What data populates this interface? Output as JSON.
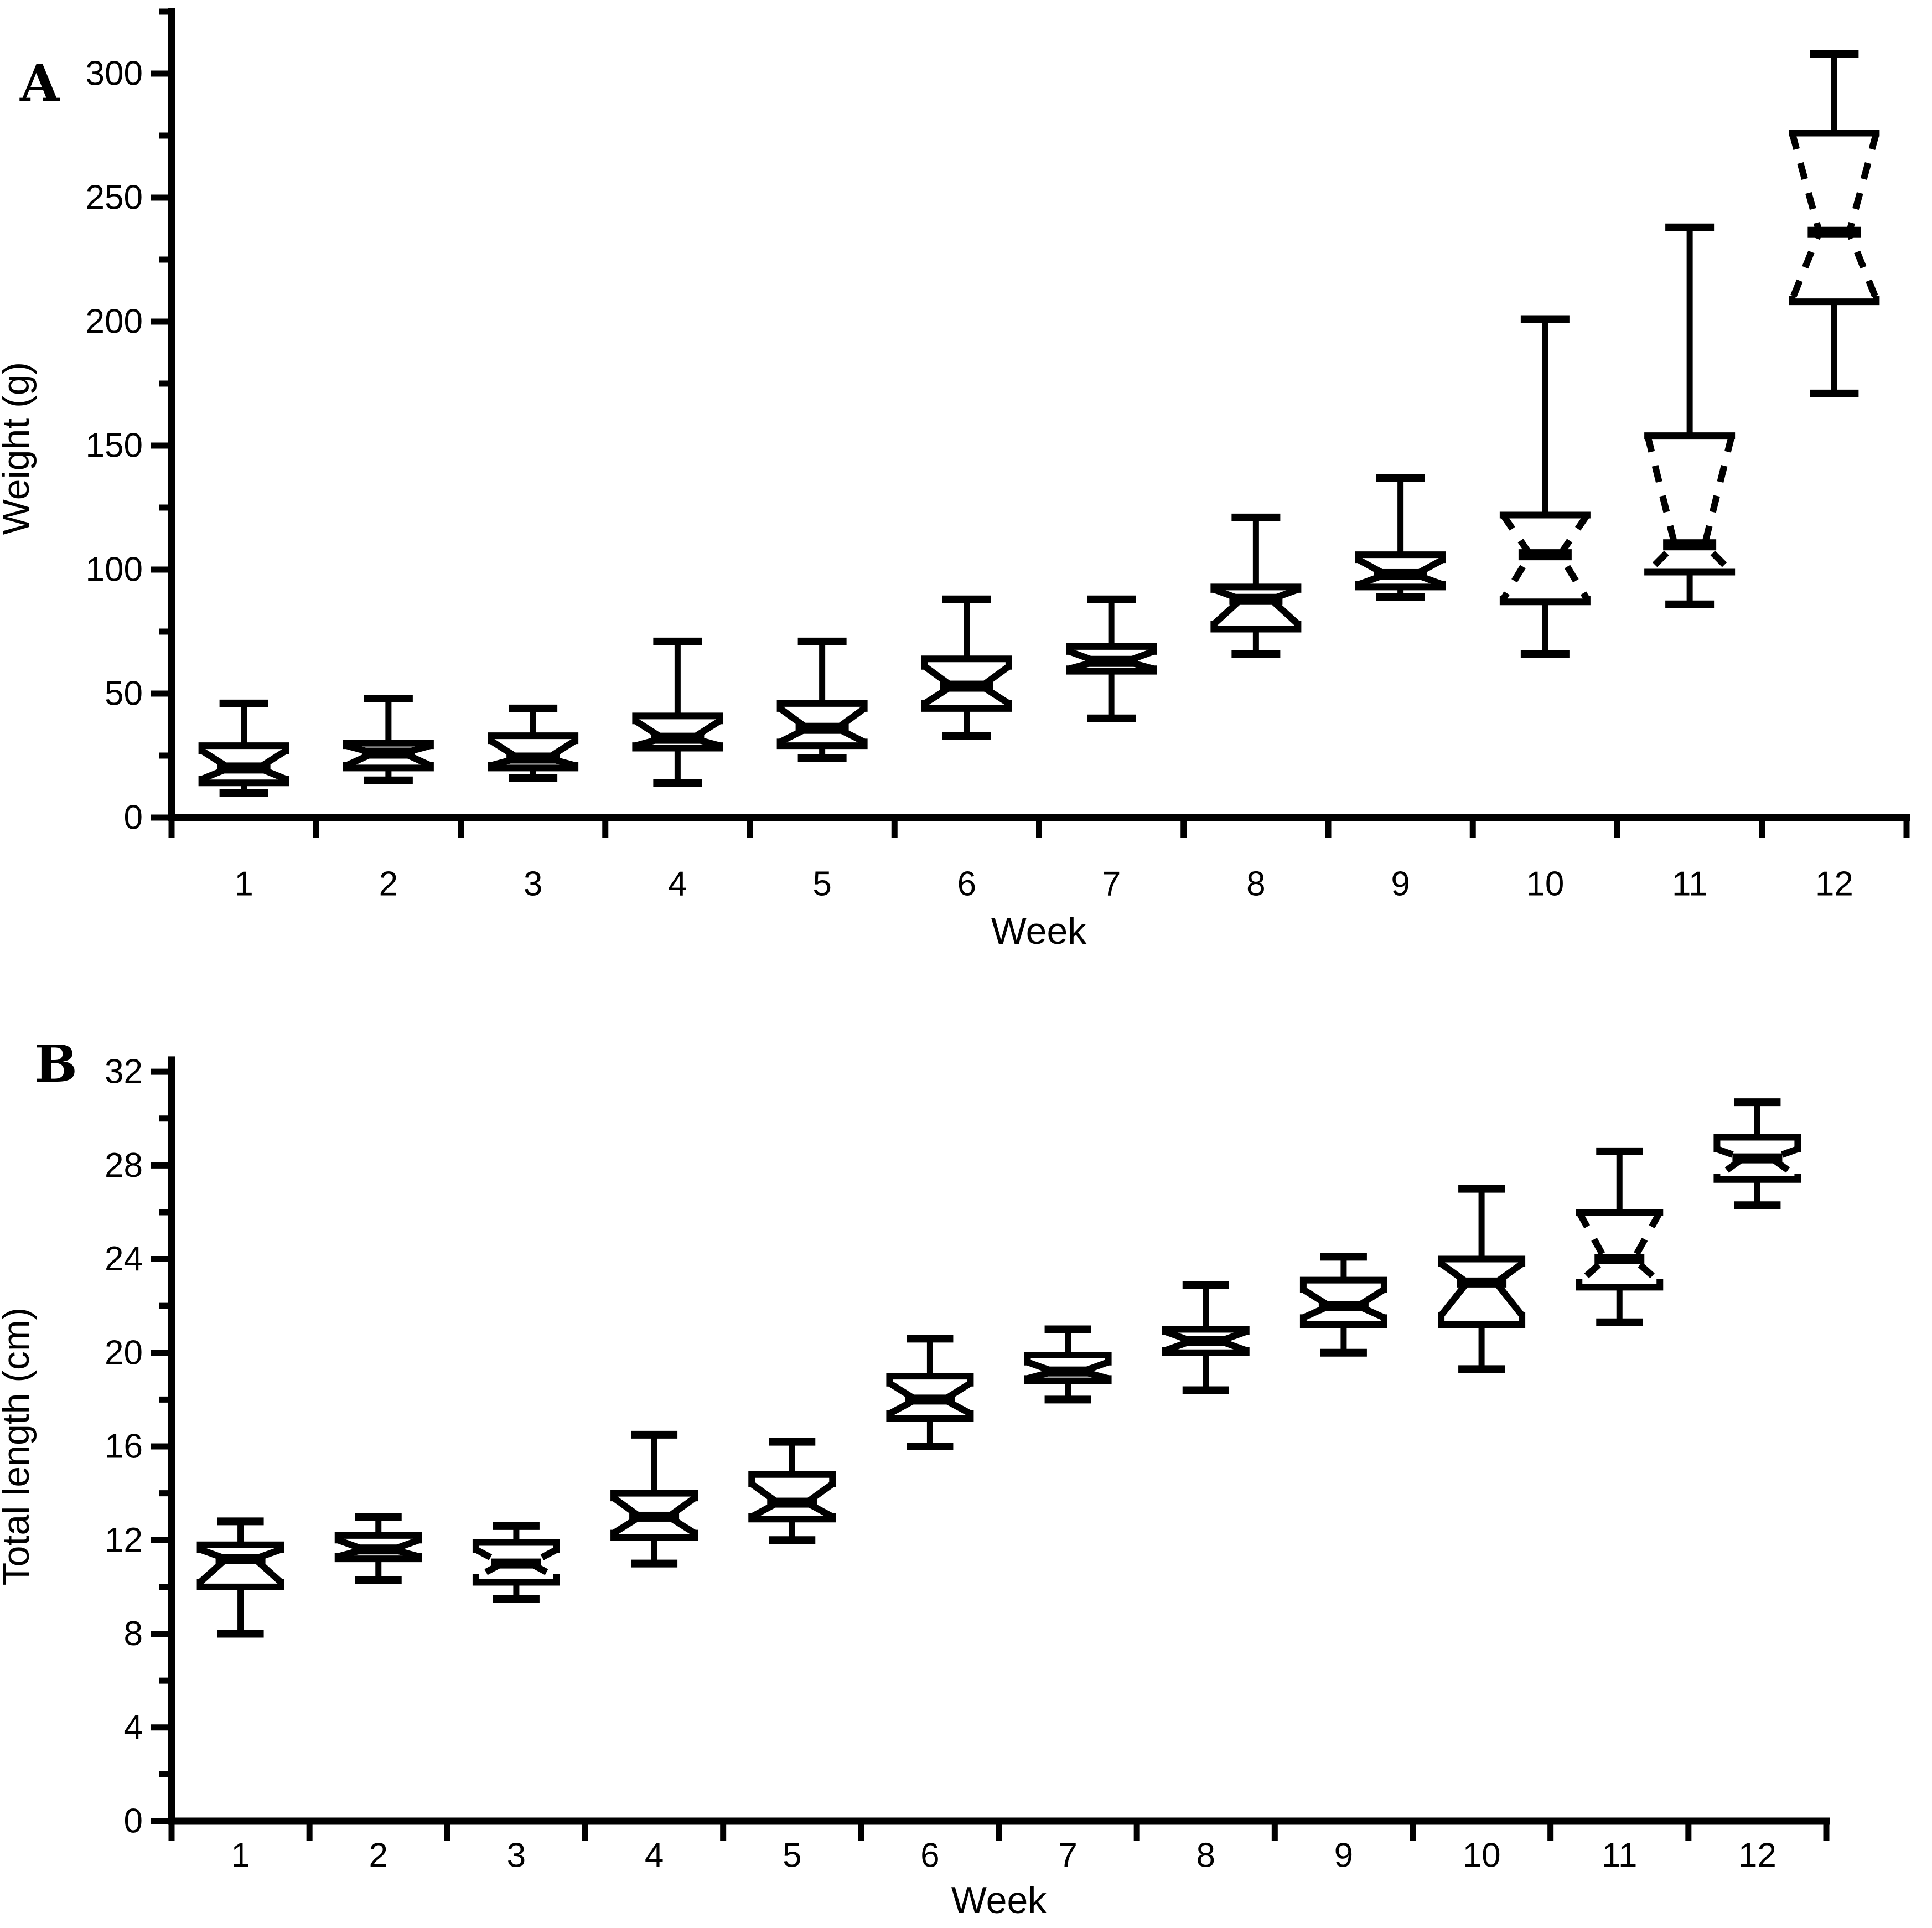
{
  "figure": {
    "background": "#ffffff",
    "ink_color": "#000000",
    "description": "Two-panel notched box plot figure"
  },
  "chart_data": [
    {
      "type": "boxplot",
      "panel_label": "A",
      "ylabel": "Weight (g)",
      "xlabel": "Week",
      "ylim": [
        0,
        300
      ],
      "ytick_step": 50,
      "yminor_step": 25,
      "ytick_labels": [
        "0",
        "50",
        "100",
        "150",
        "200",
        "250",
        "300"
      ],
      "categories": [
        "1",
        "2",
        "3",
        "4",
        "5",
        "6",
        "7",
        "8",
        "9",
        "10",
        "11",
        "12"
      ],
      "grid": false,
      "notched": true,
      "legend": null,
      "boxes": [
        {
          "week": "1",
          "min": 10,
          "q1": 14,
          "median": 20,
          "q3": 29,
          "max": 46,
          "notch_low": 15.5,
          "notch_high": 27,
          "notch_dashed": false
        },
        {
          "week": "2",
          "min": 15,
          "q1": 20,
          "median": 26,
          "q3": 30,
          "max": 48,
          "notch_low": 21,
          "notch_high": 29,
          "notch_dashed": false
        },
        {
          "week": "3",
          "min": 16,
          "q1": 20,
          "median": 24,
          "q3": 33,
          "max": 44,
          "notch_low": 21,
          "notch_high": 31,
          "notch_dashed": false
        },
        {
          "week": "4",
          "min": 14,
          "q1": 28,
          "median": 32,
          "q3": 41,
          "max": 71,
          "notch_low": 29,
          "notch_high": 39,
          "notch_dashed": false
        },
        {
          "week": "5",
          "min": 24,
          "q1": 29,
          "median": 36,
          "q3": 46,
          "max": 71,
          "notch_low": 30.5,
          "notch_high": 44,
          "notch_dashed": false
        },
        {
          "week": "6",
          "min": 33,
          "q1": 44,
          "median": 53,
          "q3": 64,
          "max": 88,
          "notch_low": 46,
          "notch_high": 61,
          "notch_dashed": false
        },
        {
          "week": "7",
          "min": 40,
          "q1": 59,
          "median": 63,
          "q3": 69,
          "max": 88,
          "notch_low": 60,
          "notch_high": 67,
          "notch_dashed": false
        },
        {
          "week": "8",
          "min": 66,
          "q1": 76,
          "median": 88,
          "q3": 93,
          "max": 121,
          "notch_low": 78,
          "notch_high": 92,
          "notch_dashed": false
        },
        {
          "week": "9",
          "min": 89,
          "q1": 93,
          "median": 98,
          "q3": 106,
          "max": 137,
          "notch_low": 94,
          "notch_high": 104,
          "notch_dashed": false
        },
        {
          "week": "10",
          "min": 66,
          "q1": 87,
          "median": 106,
          "q3": 122,
          "max": 201,
          "notch_low": 88,
          "notch_high": 122,
          "notch_dashed": true
        },
        {
          "week": "11",
          "min": 86,
          "q1": 99,
          "median": 110,
          "q3": 154,
          "max": 238,
          "notch_low": 99,
          "notch_high": 154,
          "notch_dashed": true
        },
        {
          "week": "12",
          "min": 171,
          "q1": 208,
          "median": 236,
          "q3": 276,
          "max": 308,
          "notch_low": 209,
          "notch_high": 276,
          "notch_dashed": true
        }
      ]
    },
    {
      "type": "boxplot",
      "panel_label": "B",
      "ylabel": "Total length (cm)",
      "xlabel": "Week",
      "ylim": [
        0,
        32
      ],
      "ytick_step": 4,
      "yminor_step": 2,
      "ytick_labels": [
        "0",
        "4",
        "8",
        "12",
        "16",
        "20",
        "24",
        "28",
        "32"
      ],
      "categories": [
        "1",
        "2",
        "3",
        "4",
        "5",
        "6",
        "7",
        "8",
        "9",
        "10",
        "11",
        "12"
      ],
      "grid": false,
      "notched": true,
      "legend": null,
      "boxes": [
        {
          "week": "1",
          "min": 8,
          "q1": 10,
          "median": 11.2,
          "q3": 11.8,
          "max": 12.8,
          "notch_low": 10.2,
          "notch_high": 11.6,
          "notch_dashed": false
        },
        {
          "week": "2",
          "min": 10.3,
          "q1": 11.2,
          "median": 11.6,
          "q3": 12.2,
          "max": 13,
          "notch_low": 11.3,
          "notch_high": 12,
          "notch_dashed": false
        },
        {
          "week": "3",
          "min": 9.5,
          "q1": 10.2,
          "median": 11,
          "q3": 11.9,
          "max": 12.6,
          "notch_low": 10.4,
          "notch_high": 11.6,
          "notch_dashed": true
        },
        {
          "week": "4",
          "min": 11,
          "q1": 12.1,
          "median": 13,
          "q3": 14,
          "max": 16.5,
          "notch_low": 12.3,
          "notch_high": 13.8,
          "notch_dashed": false
        },
        {
          "week": "5",
          "min": 12,
          "q1": 12.9,
          "median": 13.6,
          "q3": 14.8,
          "max": 16.2,
          "notch_low": 13,
          "notch_high": 14.4,
          "notch_dashed": false
        },
        {
          "week": "6",
          "min": 16,
          "q1": 17.2,
          "median": 18,
          "q3": 19,
          "max": 20.6,
          "notch_low": 17.4,
          "notch_high": 18.7,
          "notch_dashed": false
        },
        {
          "week": "7",
          "min": 18,
          "q1": 18.8,
          "median": 19.2,
          "q3": 19.9,
          "max": 21,
          "notch_low": 18.9,
          "notch_high": 19.6,
          "notch_dashed": false
        },
        {
          "week": "8",
          "min": 18.4,
          "q1": 20,
          "median": 20.5,
          "q3": 21,
          "max": 22.9,
          "notch_low": 20.1,
          "notch_high": 20.9,
          "notch_dashed": false
        },
        {
          "week": "9",
          "min": 20,
          "q1": 21.2,
          "median": 22,
          "q3": 23.1,
          "max": 24.1,
          "notch_low": 21.5,
          "notch_high": 22.7,
          "notch_dashed": false
        },
        {
          "week": "10",
          "min": 19.3,
          "q1": 21.2,
          "median": 23,
          "q3": 24,
          "max": 27,
          "notch_low": 21.6,
          "notch_high": 23.8,
          "notch_dashed": false
        },
        {
          "week": "11",
          "min": 21.3,
          "q1": 22.8,
          "median": 24,
          "q3": 26,
          "max": 28.6,
          "notch_low": 23,
          "notch_high": 26,
          "notch_dashed": true
        },
        {
          "week": "12",
          "min": 26.3,
          "q1": 27.4,
          "median": 28.3,
          "q3": 29.2,
          "max": 30.7,
          "notch_low": 27.5,
          "notch_high": 28.7,
          "notch_dashed": true
        }
      ]
    }
  ]
}
